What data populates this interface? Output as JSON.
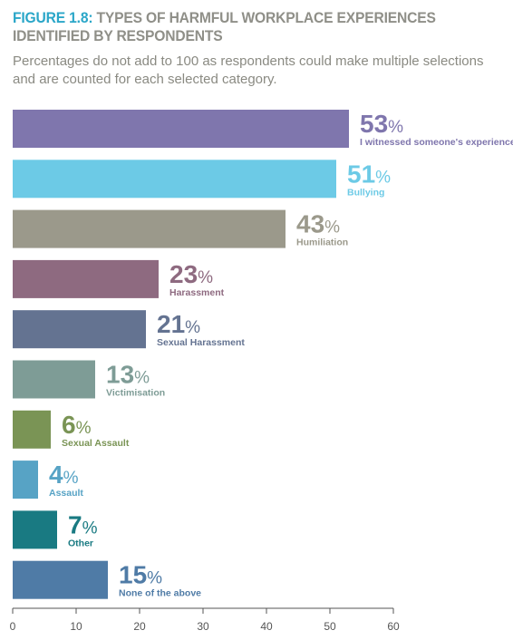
{
  "figure": {
    "label": "FIGURE 1.8:",
    "title_line1": "TYPES OF HARMFUL WORKPLACE EXPERIENCES",
    "title_line2": "IDENTIFIED BY RESPONDENTS",
    "subtitle": "Percentages do not add to 100 as respondents could make multiple selections and are counted for each selected category."
  },
  "chart_data": {
    "type": "bar",
    "orientation": "horizontal",
    "title": "TYPES OF HARMFUL WORKPLACE EXPERIENCES IDENTIFIED BY RESPONDENTS",
    "xlabel": "",
    "ylabel": "",
    "xlim": [
      0,
      60
    ],
    "xticks": [
      0,
      10,
      20,
      30,
      40,
      50,
      60
    ],
    "grid": false,
    "value_suffix": "%",
    "categories": [
      "I witnessed someone's experience",
      "Bullying",
      "Humiliation",
      "Harassment",
      "Sexual Harassment",
      "Victimisation",
      "Sexual Assault",
      "Assault",
      "Other",
      "None of the above"
    ],
    "values": [
      53,
      51,
      43,
      23,
      21,
      13,
      6,
      4,
      7,
      15
    ],
    "colors": [
      "#7f76ad",
      "#6ccae6",
      "#9b998b",
      "#8e6a80",
      "#647391",
      "#7e9c96",
      "#7a9455",
      "#57a3c5",
      "#197a82",
      "#4f7ba6"
    ]
  }
}
